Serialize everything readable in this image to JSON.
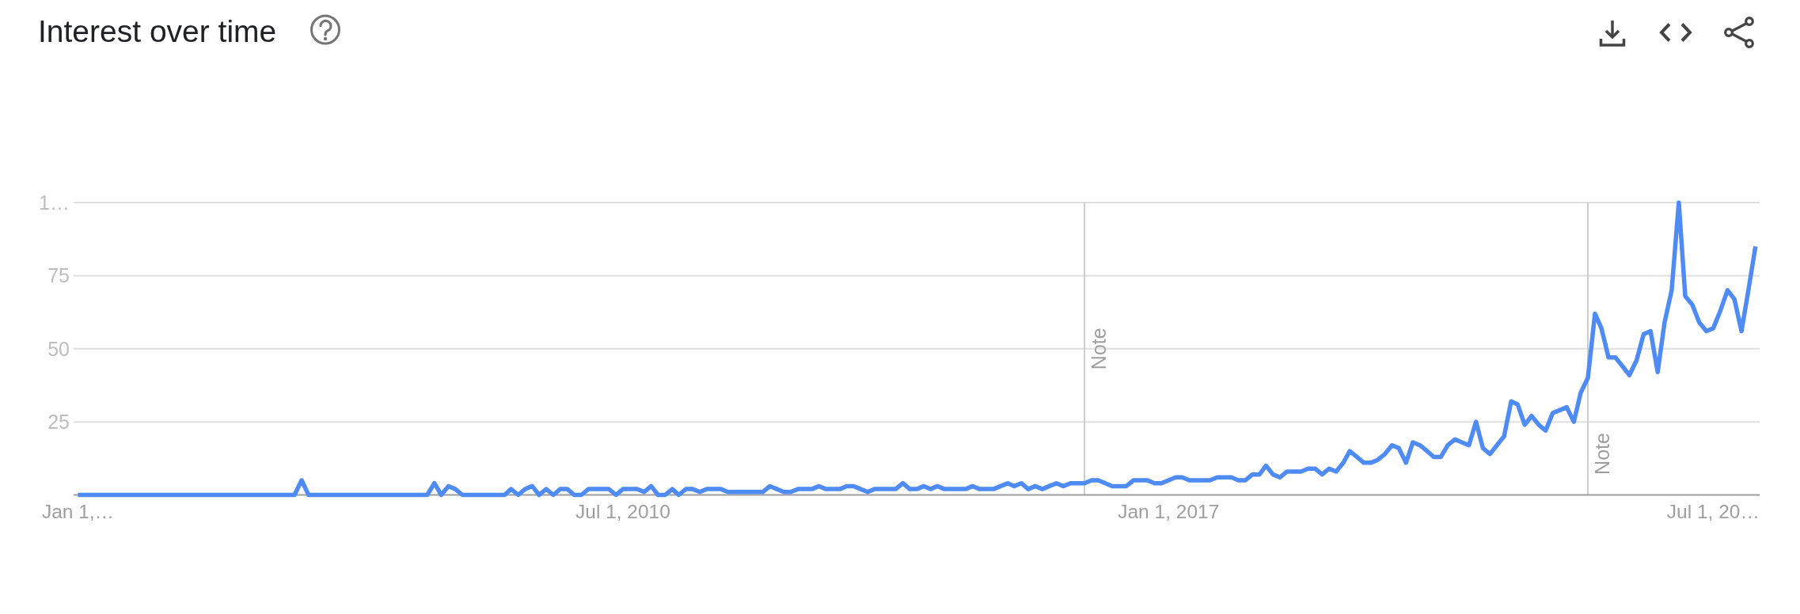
{
  "chart_data": {
    "type": "line",
    "title": "Interest over time",
    "x": [
      "2004-01",
      "2006-08",
      "2006-09",
      "2006-10",
      "2008-03",
      "2008-04",
      "2008-05",
      "2008-06",
      "2008-07",
      "2008-08",
      "2009-02",
      "2009-03",
      "2009-04",
      "2009-05",
      "2009-06",
      "2009-07",
      "2009-08",
      "2009-09",
      "2009-10",
      "2009-11",
      "2009-12",
      "2010-01",
      "2010-02",
      "2010-05",
      "2010-06",
      "2010-07",
      "2010-09",
      "2010-10",
      "2010-11",
      "2010-12",
      "2011-01",
      "2011-02",
      "2011-03",
      "2011-04",
      "2011-05",
      "2011-06",
      "2011-07",
      "2011-09",
      "2011-10",
      "2012-03",
      "2012-04",
      "2012-05",
      "2012-06",
      "2012-07",
      "2012-08",
      "2012-10",
      "2012-11",
      "2012-12",
      "2013-02",
      "2013-03",
      "2013-04",
      "2013-05",
      "2013-06",
      "2013-07",
      "2013-10",
      "2013-11",
      "2013-12",
      "2014-01",
      "2014-02",
      "2014-03",
      "2014-04",
      "2014-05",
      "2014-08",
      "2014-09",
      "2014-10",
      "2014-12",
      "2015-01",
      "2015-02",
      "2015-03",
      "2015-04",
      "2015-05",
      "2015-06",
      "2015-07",
      "2015-08",
      "2015-09",
      "2015-10",
      "2015-11",
      "2016-01",
      "2016-02",
      "2016-03",
      "2016-05",
      "2016-07",
      "2016-08",
      "2016-10",
      "2016-11",
      "2016-12",
      "2017-01",
      "2017-02",
      "2017-03",
      "2017-04",
      "2017-07",
      "2017-08",
      "2017-10",
      "2017-11",
      "2017-12",
      "2018-01",
      "2018-02",
      "2018-03",
      "2018-04",
      "2018-05",
      "2018-06",
      "2018-08",
      "2018-09",
      "2018-10",
      "2018-11",
      "2018-12",
      "2019-01",
      "2019-02",
      "2019-03",
      "2019-04",
      "2019-05",
      "2019-06",
      "2019-07",
      "2019-08",
      "2019-09",
      "2019-10",
      "2019-11",
      "2019-12",
      "2020-01",
      "2020-02",
      "2020-03",
      "2020-04",
      "2020-05",
      "2020-06",
      "2020-07",
      "2020-08",
      "2020-09",
      "2020-10",
      "2020-11",
      "2020-12",
      "2021-01",
      "2021-02",
      "2021-03",
      "2021-04",
      "2021-05",
      "2021-06",
      "2021-07",
      "2021-08",
      "2021-09",
      "2021-10",
      "2021-11",
      "2021-12",
      "2022-01",
      "2022-02",
      "2022-03",
      "2022-04",
      "2022-05",
      "2022-06",
      "2022-07",
      "2022-08",
      "2022-09",
      "2022-10",
      "2022-11",
      "2022-12",
      "2023-01",
      "2023-02",
      "2023-03",
      "2023-04",
      "2023-05",
      "2023-06",
      "2023-07",
      "2023-08",
      "2023-09",
      "2023-10",
      "2023-11",
      "2023-12",
      "2024-01"
    ],
    "values": [
      0,
      0,
      5,
      0,
      0,
      4,
      0,
      3,
      2,
      0,
      0,
      2,
      0,
      2,
      3,
      0,
      2,
      0,
      2,
      2,
      0,
      0,
      2,
      2,
      0,
      2,
      2,
      1,
      3,
      0,
      0,
      2,
      0,
      2,
      2,
      1,
      2,
      2,
      1,
      1,
      3,
      2,
      1,
      1,
      2,
      2,
      3,
      2,
      2,
      3,
      3,
      2,
      1,
      2,
      2,
      4,
      2,
      2,
      3,
      2,
      3,
      2,
      2,
      3,
      2,
      2,
      3,
      4,
      3,
      4,
      2,
      3,
      2,
      3,
      4,
      3,
      4,
      4,
      5,
      5,
      3,
      3,
      5,
      5,
      4,
      4,
      5,
      6,
      6,
      5,
      5,
      6,
      6,
      5,
      5,
      7,
      7,
      10,
      7,
      6,
      8,
      8,
      9,
      9,
      7,
      9,
      8,
      11,
      15,
      13,
      11,
      11,
      12,
      14,
      17,
      16,
      11,
      18,
      17,
      15,
      13,
      13,
      17,
      19,
      18,
      17,
      25,
      16,
      14,
      17,
      20,
      32,
      31,
      24,
      27,
      24,
      22,
      28,
      29,
      30,
      25,
      35,
      40,
      62,
      57,
      47,
      47,
      44,
      41,
      46,
      55,
      56,
      42,
      59,
      70,
      100,
      68,
      65,
      59,
      56,
      57,
      63,
      70,
      67,
      56,
      70,
      85
    ],
    "color": "#4e8bf5",
    "line_style": "solid",
    "xlim": [
      "2003-12-13",
      "2024-01-19"
    ],
    "xticks": [
      {
        "value": "2004-01-01",
        "label": "Jan 1,…"
      },
      {
        "value": "2010-07-01",
        "label": "Jul 1, 2010"
      },
      {
        "value": "2017-01-01",
        "label": "Jan 1, 2017"
      },
      {
        "value": "2023-07-01",
        "label": "Jul 1, 20…"
      }
    ],
    "ylim": [
      0,
      100
    ],
    "yticks": [
      25,
      50,
      75,
      {
        "value": 100,
        "label": "1…"
      }
    ],
    "grid": "y",
    "ref_lines": [
      {
        "axis": "x",
        "value": "2016-01-01",
        "label": "Note",
        "color": "#cccccc"
      },
      {
        "axis": "x",
        "value": "2022-01-01",
        "label": "Note",
        "color": "#cccccc"
      }
    ]
  }
}
